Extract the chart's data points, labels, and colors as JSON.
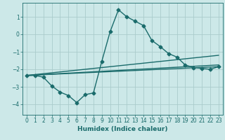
{
  "title": "",
  "xlabel": "Humidex (Indice chaleur)",
  "background_color": "#cce8e8",
  "grid_color": "#aacccc",
  "line_color": "#1a6b6b",
  "xlim": [
    -0.5,
    23.5
  ],
  "ylim": [
    -4.6,
    1.8
  ],
  "xticks": [
    0,
    1,
    2,
    3,
    4,
    5,
    6,
    7,
    8,
    9,
    10,
    11,
    12,
    13,
    14,
    15,
    16,
    17,
    18,
    19,
    20,
    21,
    22,
    23
  ],
  "yticks": [
    -4,
    -3,
    -2,
    -1,
    0,
    1
  ],
  "series": [
    {
      "x": [
        0,
        1,
        2,
        3,
        4,
        5,
        6,
        7,
        8,
        9,
        10,
        11,
        12,
        13,
        14,
        15,
        16,
        17,
        18,
        19,
        20,
        21,
        22,
        23
      ],
      "y": [
        -2.35,
        -2.35,
        -2.45,
        -2.95,
        -3.3,
        -3.5,
        -3.9,
        -3.45,
        -3.35,
        -1.55,
        0.15,
        1.4,
        1.0,
        0.75,
        0.5,
        -0.35,
        -0.7,
        -1.1,
        -1.3,
        -1.75,
        -1.9,
        -1.95,
        -2.0,
        -1.85
      ],
      "marker": "D",
      "linewidth": 1.0,
      "markersize": 2.5
    },
    {
      "x": [
        0,
        23
      ],
      "y": [
        -2.35,
        -1.2
      ],
      "marker": null,
      "linewidth": 1.0
    },
    {
      "x": [
        0,
        23
      ],
      "y": [
        -2.35,
        -1.75
      ],
      "marker": null,
      "linewidth": 1.0
    },
    {
      "x": [
        0,
        23
      ],
      "y": [
        -2.35,
        -1.85
      ],
      "marker": null,
      "linewidth": 1.0
    }
  ]
}
